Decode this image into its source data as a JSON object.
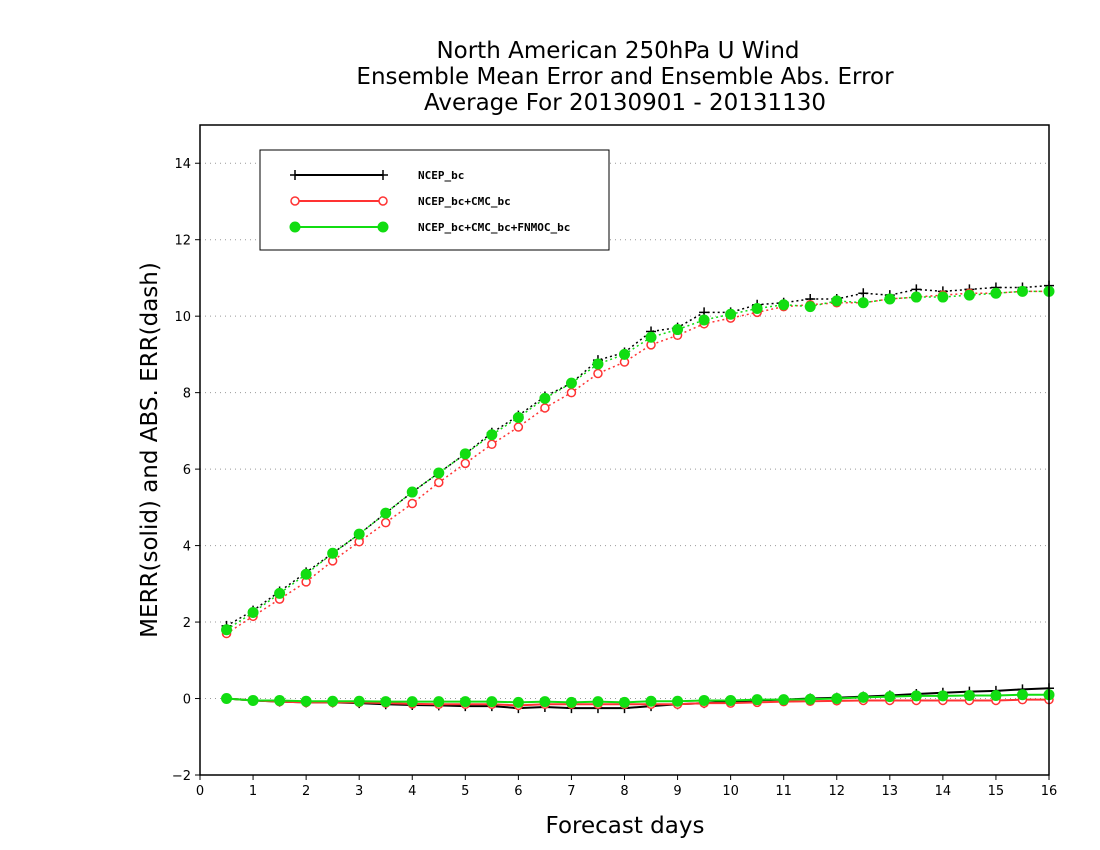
{
  "chart_data": {
    "type": "line",
    "title_lines": [
      "North American 250hPa U Wind",
      "Ensemble Mean Error and Ensemble Abs. Error",
      "Average For 20130901 - 20131130"
    ],
    "xlabel": "Forecast days",
    "ylabel": "MERR(solid) and ABS. ERR(dash)",
    "xlim": [
      0,
      16
    ],
    "ylim": [
      -2,
      15
    ],
    "x_ticks": [
      "0",
      "1",
      "2",
      "3",
      "4",
      "5",
      "6",
      "7",
      "8",
      "9",
      "10",
      "11",
      "12",
      "13",
      "14",
      "15",
      "16"
    ],
    "y_ticks": [
      "−2",
      "0",
      "2",
      "4",
      "6",
      "8",
      "10",
      "12",
      "14"
    ],
    "y_tick_values": [
      -2,
      0,
      2,
      4,
      6,
      8,
      10,
      12,
      14
    ],
    "grid": "horizontal dotted",
    "legend_position": "top-left",
    "x": [
      0.5,
      1,
      1.5,
      2,
      2.5,
      3,
      3.5,
      4,
      4.5,
      5,
      5.5,
      6,
      6.5,
      7,
      7.5,
      8,
      8.5,
      9,
      9.5,
      10,
      10.5,
      11,
      11.5,
      12,
      12.5,
      13,
      13.5,
      14,
      14.5,
      15,
      15.5,
      16
    ],
    "series": [
      {
        "name": "NCEP_bc",
        "color": "#000000",
        "marker": "plus",
        "abs_error": [
          1.9,
          2.3,
          2.8,
          3.3,
          3.8,
          4.3,
          4.85,
          5.4,
          5.9,
          6.4,
          6.95,
          7.4,
          7.9,
          8.25,
          8.85,
          9.05,
          9.6,
          9.7,
          10.1,
          10.1,
          10.3,
          10.35,
          10.45,
          10.45,
          10.6,
          10.55,
          10.7,
          10.65,
          10.7,
          10.75,
          10.75,
          10.8
        ],
        "mean_error": [
          0.0,
          -0.05,
          -0.08,
          -0.1,
          -0.1,
          -0.12,
          -0.15,
          -0.17,
          -0.18,
          -0.2,
          -0.2,
          -0.25,
          -0.22,
          -0.25,
          -0.25,
          -0.25,
          -0.2,
          -0.15,
          -0.12,
          -0.08,
          -0.05,
          -0.03,
          0.0,
          0.02,
          0.05,
          0.08,
          0.12,
          0.15,
          0.18,
          0.2,
          0.24,
          0.27
        ]
      },
      {
        "name": "NCEP_bc+CMC_bc",
        "color": "#ff3333",
        "marker": "open-circle",
        "abs_error": [
          1.7,
          2.15,
          2.6,
          3.05,
          3.6,
          4.1,
          4.6,
          5.1,
          5.65,
          6.15,
          6.65,
          7.1,
          7.6,
          8.0,
          8.5,
          8.8,
          9.25,
          9.5,
          9.8,
          9.95,
          10.1,
          10.25,
          10.3,
          10.35,
          10.35,
          10.45,
          10.5,
          10.55,
          10.6,
          10.6,
          10.65,
          10.65
        ],
        "mean_error": [
          0.0,
          -0.05,
          -0.08,
          -0.1,
          -0.1,
          -0.1,
          -0.12,
          -0.14,
          -0.15,
          -0.15,
          -0.15,
          -0.18,
          -0.15,
          -0.15,
          -0.15,
          -0.15,
          -0.15,
          -0.15,
          -0.12,
          -0.12,
          -0.1,
          -0.08,
          -0.07,
          -0.06,
          -0.05,
          -0.05,
          -0.05,
          -0.05,
          -0.05,
          -0.05,
          -0.03,
          -0.03
        ]
      },
      {
        "name": "NCEP_bc+CMC_bc+FNMOC_bc",
        "color": "#11dd11",
        "marker": "filled-circle",
        "abs_error": [
          1.8,
          2.25,
          2.75,
          3.25,
          3.8,
          4.3,
          4.85,
          5.4,
          5.9,
          6.4,
          6.9,
          7.35,
          7.85,
          8.25,
          8.75,
          9.0,
          9.45,
          9.65,
          9.9,
          10.05,
          10.2,
          10.3,
          10.25,
          10.4,
          10.35,
          10.45,
          10.5,
          10.5,
          10.55,
          10.6,
          10.65,
          10.65
        ],
        "mean_error": [
          0.0,
          -0.05,
          -0.05,
          -0.07,
          -0.07,
          -0.07,
          -0.08,
          -0.08,
          -0.08,
          -0.08,
          -0.08,
          -0.1,
          -0.08,
          -0.1,
          -0.08,
          -0.1,
          -0.07,
          -0.07,
          -0.05,
          -0.05,
          -0.03,
          -0.03,
          -0.02,
          0.0,
          0.03,
          0.05,
          0.07,
          0.07,
          0.08,
          0.08,
          0.1,
          0.1
        ]
      }
    ]
  }
}
